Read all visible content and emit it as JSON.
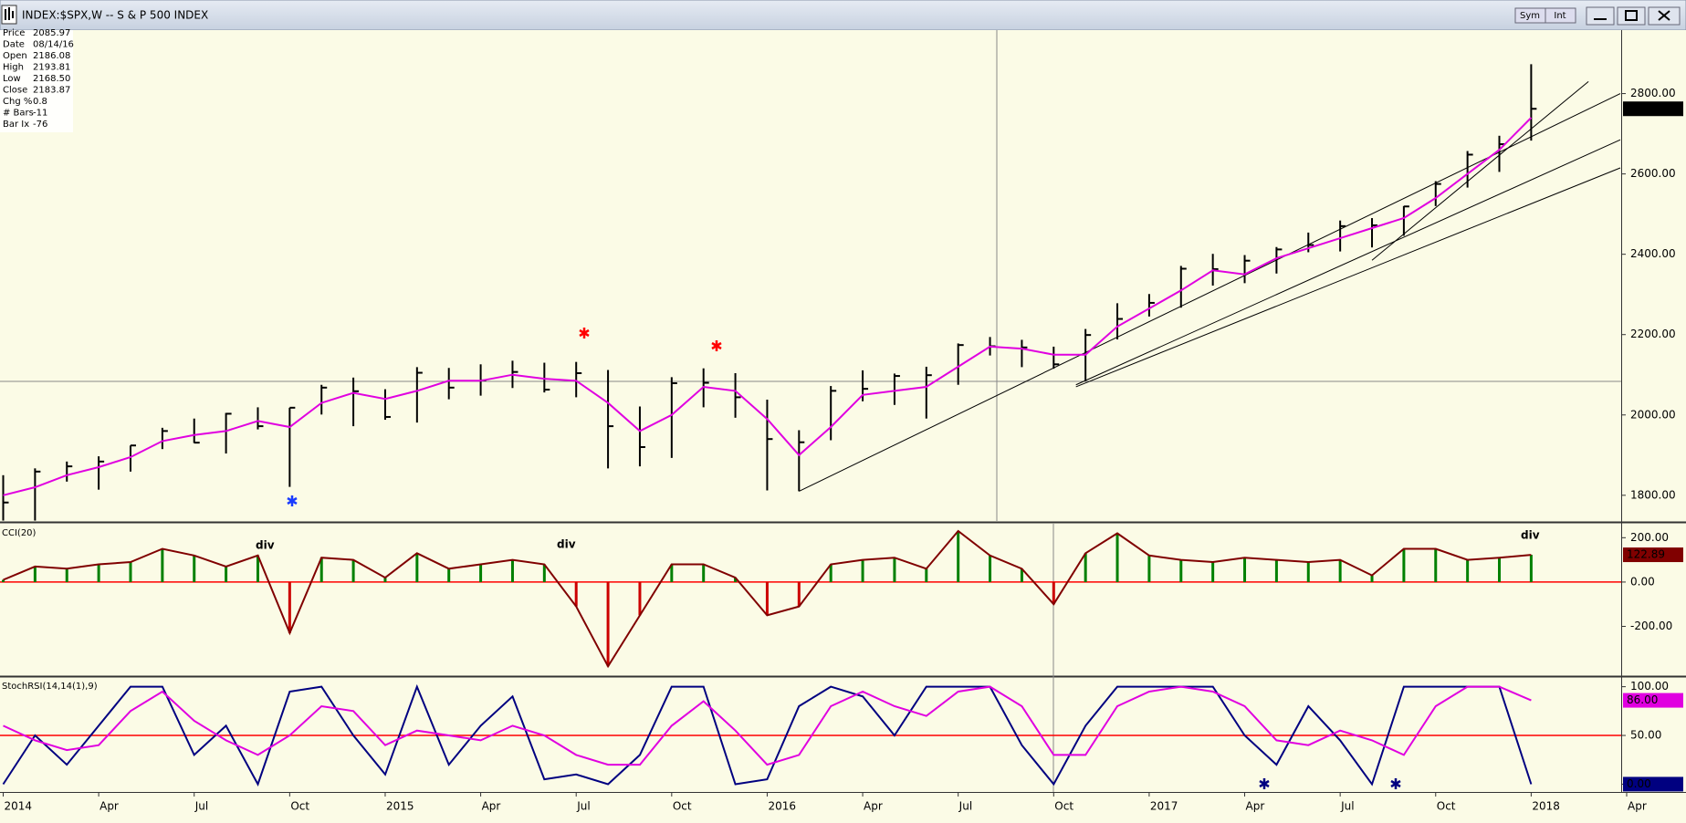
{
  "window": {
    "title": "INDEX:$SPX,W -- S & P 500 INDEX",
    "buttons": [
      "Sym",
      "Int"
    ]
  },
  "data_box": [
    {
      "label": "Price",
      "value": "2085.97"
    },
    {
      "label": "Date",
      "value": "08/14/16"
    },
    {
      "label": "Open",
      "value": "2186.08"
    },
    {
      "label": "High",
      "value": "2193.81"
    },
    {
      "label": "Low",
      "value": "2168.50"
    },
    {
      "label": "Close",
      "value": "2183.87"
    },
    {
      "label": "Chg %",
      "value": "0.8"
    },
    {
      "label": "# Bars",
      "value": "-11"
    },
    {
      "label": "Bar Ix",
      "value": "-76"
    }
  ],
  "chart_data": [
    {
      "type": "ohlc",
      "color": "#000000",
      "x": [
        0,
        1,
        2,
        3,
        4,
        5,
        6,
        7,
        8,
        9,
        10,
        11,
        12,
        13,
        14,
        15,
        16,
        17,
        18,
        19,
        20,
        21,
        22,
        23,
        24,
        25,
        26,
        27,
        28,
        29,
        30,
        31,
        32,
        33,
        34,
        35,
        36,
        37,
        38,
        39,
        40,
        41,
        42,
        43,
        44,
        45,
        46,
        47,
        48
      ],
      "high": [
        1850,
        1867,
        1884,
        1897,
        1924,
        1968,
        1991,
        2005,
        2019,
        2018,
        2075,
        2093,
        2064,
        2119,
        2117,
        2126,
        2135,
        2130,
        2132,
        2112,
        2021,
        2094,
        2116,
        2104,
        2038,
        1962,
        2072,
        2111,
        2103,
        2120,
        2178,
        2194,
        2187,
        2170,
        2214,
        2278,
        2301,
        2371,
        2401,
        2398,
        2418,
        2454,
        2484,
        2490,
        2520,
        2582,
        2657,
        2695,
        2873
      ],
      "low": [
        1737,
        1737,
        1834,
        1814,
        1859,
        1915,
        1930,
        1904,
        1964,
        1821,
        2001,
        1972,
        1988,
        1981,
        2039,
        2048,
        2067,
        2056,
        2044,
        1867,
        1872,
        1893,
        2019,
        1993,
        1812,
        1810,
        1937,
        2034,
        2025,
        1991,
        2075,
        2148,
        2119,
        2115,
        2084,
        2188,
        2245,
        2267,
        2322,
        2328,
        2352,
        2405,
        2407,
        2417,
        2446,
        2520,
        2566,
        2605,
        2683
      ],
      "close": [
        1782,
        1859,
        1872,
        1884,
        1924,
        1960,
        1931,
        2003,
        1972,
        2018,
        2068,
        2059,
        1995,
        2105,
        2068,
        2086,
        2107,
        2063,
        2104,
        1972,
        1920,
        2079,
        2080,
        2044,
        1940,
        1932,
        2060,
        2065,
        2097,
        2099,
        2174,
        2171,
        2168,
        2126,
        2199,
        2239,
        2279,
        2364,
        2363,
        2384,
        2412,
        2423,
        2470,
        2472,
        2519,
        2575,
        2648,
        2674,
        2762.13
      ],
      "overlay": {
        "color": "#e000e0",
        "values": [
          1800,
          1820,
          1850,
          1870,
          1895,
          1935,
          1950,
          1960,
          1985,
          1970,
          2030,
          2055,
          2040,
          2060,
          2085,
          2085,
          2100,
          2090,
          2085,
          2030,
          1960,
          2000,
          2070,
          2060,
          1990,
          1900,
          1970,
          2050,
          2060,
          2070,
          2120,
          2170,
          2165,
          2150,
          2150,
          2220,
          2265,
          2310,
          2360,
          2350,
          2390,
          2415,
          2440,
          2465,
          2490,
          2540,
          2600,
          2660,
          2740
        ]
      },
      "trendlines": [
        {
          "x": [
            25,
            50.8
          ],
          "y": [
            1810,
            2800
          ]
        },
        {
          "x": [
            33.7,
            50.8
          ],
          "y": [
            2075,
            2685
          ]
        },
        {
          "x": [
            33.7,
            50.8
          ],
          "y": [
            2070,
            2615
          ]
        },
        {
          "x": [
            43,
            49.8
          ],
          "y": [
            2385,
            2830
          ]
        }
      ],
      "ylim": [
        1736,
        2958
      ],
      "yticks": [
        {
          "value": 1800,
          "label": "1800.00"
        },
        {
          "value": 2000,
          "label": "2000.00"
        },
        {
          "value": 2200,
          "label": "2200.00"
        },
        {
          "value": 2400,
          "label": "2400.00"
        },
        {
          "value": 2600,
          "label": "2600.00"
        },
        {
          "value": 2800,
          "label": "2800.00"
        }
      ]
    },
    {
      "type": "bar",
      "title": "CCI(20)",
      "colors": {
        "up": "#008000",
        "down": "#cc0000"
      },
      "line_color": "#800000",
      "hline": 0,
      "hline_color": "#ff0000",
      "x": [
        0,
        1,
        2,
        3,
        4,
        5,
        6,
        7,
        8,
        9,
        10,
        11,
        12,
        13,
        14,
        15,
        16,
        17,
        18,
        19,
        20,
        21,
        22,
        23,
        24,
        25,
        26,
        27,
        28,
        29,
        30,
        31,
        32,
        33,
        34,
        35,
        36,
        37,
        38,
        39,
        40,
        41,
        42,
        43,
        44,
        45,
        46,
        47,
        48
      ],
      "values": [
        10,
        70,
        60,
        80,
        90,
        150,
        120,
        70,
        120,
        -230,
        110,
        100,
        20,
        130,
        60,
        80,
        100,
        80,
        -110,
        -380,
        -150,
        80,
        80,
        20,
        -150,
        -110,
        80,
        100,
        110,
        60,
        230,
        120,
        60,
        -100,
        130,
        220,
        120,
        100,
        90,
        110,
        100,
        90,
        100,
        30,
        150,
        150,
        100,
        110,
        122.89
      ],
      "ylim": [
        -420,
        263
      ],
      "yticks": [
        {
          "value": -200,
          "label": "-200.00"
        },
        {
          "value": 0,
          "label": "0.00"
        },
        {
          "value": 200,
          "label": "200.00"
        }
      ],
      "annotations": [
        "div",
        "div",
        "div"
      ],
      "annotation_colors": [
        "#ff0000",
        "#ff0000",
        "#000000"
      ]
    },
    {
      "type": "line",
      "title": "StochRSI(14,14(1),9)",
      "hline": 50,
      "hline_color": "#ff0000",
      "x": [
        0,
        1,
        2,
        3,
        4,
        5,
        6,
        7,
        8,
        9,
        10,
        11,
        12,
        13,
        14,
        15,
        16,
        17,
        18,
        19,
        20,
        21,
        22,
        23,
        24,
        25,
        26,
        27,
        28,
        29,
        30,
        31,
        32,
        33,
        34,
        35,
        36,
        37,
        38,
        39,
        40,
        41,
        42,
        43,
        44,
        45,
        46,
        47,
        48
      ],
      "series": [
        {
          "color": "#000080",
          "last_label": "0.00",
          "values": [
            0,
            50,
            20,
            60,
            100,
            100,
            30,
            60,
            0,
            95,
            100,
            50,
            10,
            100,
            20,
            60,
            90,
            5,
            10,
            0,
            30,
            100,
            100,
            0,
            5,
            80,
            100,
            90,
            50,
            100,
            100,
            100,
            40,
            0,
            60,
            100,
            100,
            100,
            100,
            50,
            20,
            80,
            45,
            0,
            100,
            100,
            100,
            100,
            0
          ]
        },
        {
          "color": "#e000e0",
          "last_label": "86.00",
          "values": [
            60,
            45,
            35,
            40,
            75,
            95,
            65,
            45,
            30,
            50,
            80,
            75,
            40,
            55,
            50,
            45,
            60,
            50,
            30,
            20,
            20,
            60,
            85,
            55,
            20,
            30,
            80,
            95,
            80,
            70,
            95,
            100,
            80,
            30,
            30,
            80,
            95,
            100,
            95,
            80,
            45,
            40,
            55,
            45,
            30,
            80,
            100,
            100,
            86
          ]
        }
      ],
      "ylim": [
        -8,
        109
      ],
      "yticks": [
        {
          "value": 0,
          "label": "0.00"
        },
        {
          "value": 50,
          "label": "50.00"
        },
        {
          "value": 100,
          "label": "100.00"
        }
      ],
      "xlim": [
        0,
        51
      ],
      "xticks": [
        {
          "value": 0,
          "label": "2014"
        },
        {
          "value": 3,
          "label": "Apr"
        },
        {
          "value": 6,
          "label": "Jul"
        },
        {
          "value": 9,
          "label": "Oct"
        },
        {
          "value": 12,
          "label": "2015"
        },
        {
          "value": 15,
          "label": "Apr"
        },
        {
          "value": 18,
          "label": "Jul"
        },
        {
          "value": 21,
          "label": "Oct"
        },
        {
          "value": 24,
          "label": "2016"
        },
        {
          "value": 27,
          "label": "Apr"
        },
        {
          "value": 30,
          "label": "Jul"
        },
        {
          "value": 33,
          "label": "Oct"
        },
        {
          "value": 36,
          "label": "2017"
        },
        {
          "value": 39,
          "label": "Apr"
        },
        {
          "value": 42,
          "label": "Jul"
        },
        {
          "value": 45,
          "label": "Oct"
        },
        {
          "value": 48,
          "label": "2018"
        },
        {
          "value": 51,
          "label": "Apr"
        }
      ]
    }
  ]
}
